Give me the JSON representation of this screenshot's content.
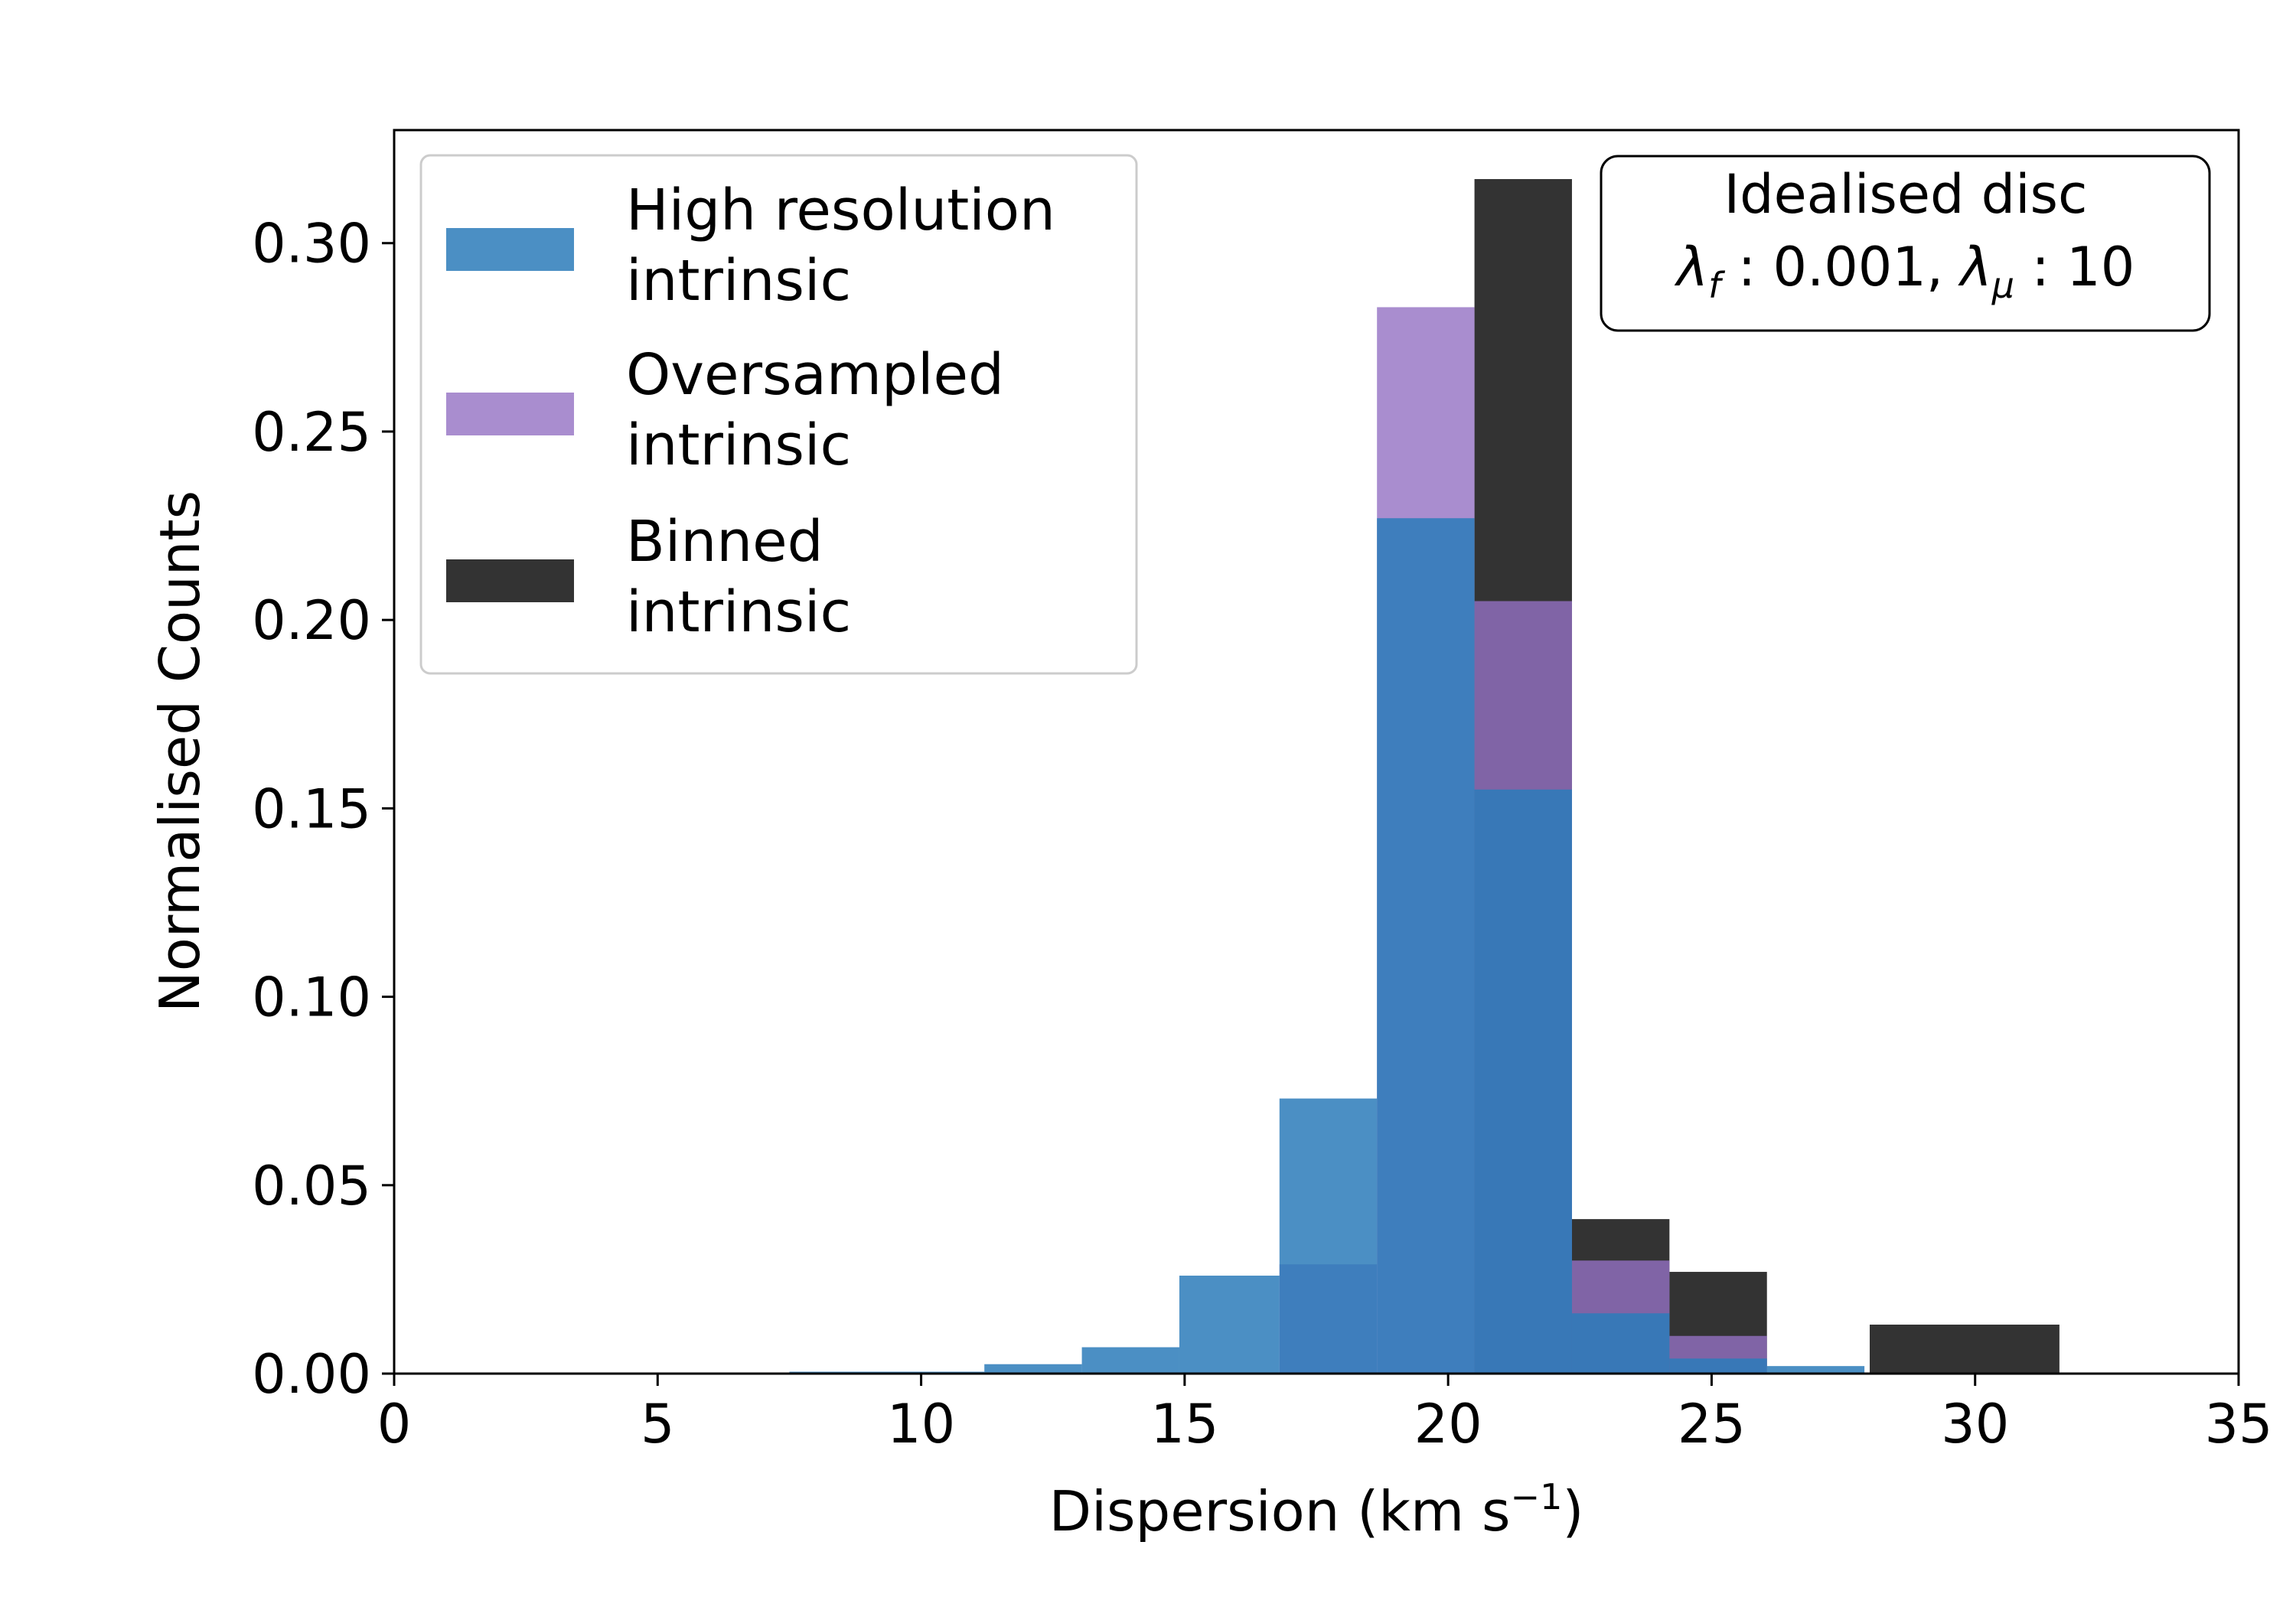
{
  "chart_data": {
    "type": "bar",
    "title": "",
    "xlabel_base": "Dispersion (km s",
    "xlabel_sup": "−1",
    "xlabel_close": ")",
    "ylabel": "Normalised Counts",
    "xlim": [
      0,
      35
    ],
    "ylim": [
      0,
      0.33
    ],
    "xticks": [
      "0",
      "5",
      "10",
      "15",
      "20",
      "25",
      "30",
      "35"
    ],
    "yticks": [
      "0.00",
      "0.05",
      "0.10",
      "0.15",
      "0.20",
      "0.25",
      "0.30"
    ],
    "grid": false,
    "legend_position": "top-left",
    "annotation_box": {
      "line1": "Idealised disc",
      "lambda": "λ",
      "sub_f": "f",
      "middle": " : 0.001, ",
      "sub_mu": "μ",
      "end": " : 10",
      "position": "top-right"
    },
    "series": [
      {
        "name": "Binned intrinsic",
        "legend_line1": "Binned",
        "legend_line2": "intrinsic",
        "color": "#333333",
        "opacity": 1.0,
        "bins": [
          {
            "x0": 20.5,
            "x1": 22.35,
            "y": 0.317
          },
          {
            "x0": 22.35,
            "x1": 24.2,
            "y": 0.041
          },
          {
            "x0": 24.2,
            "x1": 26.05,
            "y": 0.027
          },
          {
            "x0": 28.0,
            "x1": 31.6,
            "y": 0.013
          }
        ]
      },
      {
        "name": "Oversampled intrinsic",
        "legend_line1": "Oversampled",
        "legend_line2": "intrinsic",
        "color": "#9370c3",
        "opacity": 0.8,
        "bins": [
          {
            "x0": 16.8,
            "x1": 18.65,
            "y": 0.029
          },
          {
            "x0": 18.65,
            "x1": 20.5,
            "y": 0.283
          },
          {
            "x0": 20.5,
            "x1": 22.35,
            "y": 0.205
          },
          {
            "x0": 22.35,
            "x1": 24.2,
            "y": 0.03
          },
          {
            "x0": 24.2,
            "x1": 26.05,
            "y": 0.01
          }
        ]
      },
      {
        "name": "High resolution intrinsic",
        "legend_line1": "High resolution",
        "legend_line2": "intrinsic",
        "color": "#2b7bba",
        "opacity": 0.85,
        "bins": [
          {
            "x0": 7.5,
            "x1": 11.2,
            "y": 0.0005
          },
          {
            "x0": 11.2,
            "x1": 13.05,
            "y": 0.0025
          },
          {
            "x0": 13.05,
            "x1": 14.9,
            "y": 0.007
          },
          {
            "x0": 14.9,
            "x1": 16.8,
            "y": 0.026
          },
          {
            "x0": 16.8,
            "x1": 18.65,
            "y": 0.073
          },
          {
            "x0": 18.65,
            "x1": 20.5,
            "y": 0.227
          },
          {
            "x0": 20.5,
            "x1": 22.35,
            "y": 0.155
          },
          {
            "x0": 22.35,
            "x1": 24.2,
            "y": 0.016
          },
          {
            "x0": 24.2,
            "x1": 26.05,
            "y": 0.004
          },
          {
            "x0": 26.05,
            "x1": 27.9,
            "y": 0.002
          }
        ]
      }
    ],
    "legend_order": [
      2,
      1,
      0
    ]
  }
}
